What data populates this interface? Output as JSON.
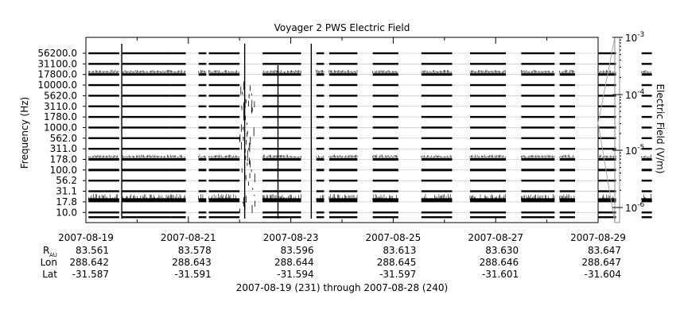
{
  "chart_data": {
    "type": "spectrogram",
    "title": "Voyager 2 PWS Electric Field",
    "ylabel": "Frequency (Hz)",
    "colorbar_label": "Electric Field (V/m)",
    "colorbar_ticks": [
      {
        "base": "10",
        "exp": "-3",
        "value": 0.001
      },
      {
        "base": "10",
        "exp": "-4",
        "value": 0.0001
      },
      {
        "base": "10",
        "exp": "-5",
        "value": 1e-05
      },
      {
        "base": "10",
        "exp": "-6",
        "value": 1e-06
      }
    ],
    "channels": [
      "56200.0",
      "31100.0",
      "17800.0",
      "10000.0",
      "5620.0",
      "3110.0",
      "1780.0",
      "1000.0",
      "562.0",
      "311.0",
      "178.0",
      "100.0",
      "56.2",
      "31.1",
      "17.8",
      "10.0"
    ],
    "x_tick_labels": [
      "2007-08-19",
      "2007-08-21",
      "2007-08-23",
      "2007-08-25",
      "2007-08-27",
      "2007-08-29"
    ],
    "xlim": [
      "2007-08-19",
      "2007-08-29"
    ],
    "ephemeris": {
      "labels": {
        "r_main": "R",
        "r_sub": "AU",
        "lon": "Lon",
        "lat": "Lat"
      },
      "values": [
        {
          "r": "83.561",
          "lon": "288.642",
          "lat": "-31.587"
        },
        {
          "r": "83.578",
          "lon": "288.643",
          "lat": "-31.591"
        },
        {
          "r": "83.596",
          "lon": "288.644",
          "lat": "-31.594"
        },
        {
          "r": "83.613",
          "lon": "288.645",
          "lat": "-31.597"
        },
        {
          "r": "83.630",
          "lon": "288.646",
          "lat": "-31.601"
        },
        {
          "r": "83.647",
          "lon": "288.647",
          "lat": "-31.604"
        }
      ]
    },
    "data_segments_days": [
      [
        0.05,
        0.65
      ],
      [
        0.7,
        1.65
      ],
      [
        1.65,
        1.95
      ],
      [
        2.2,
        2.35
      ],
      [
        2.4,
        3.0
      ],
      [
        3.45,
        4.2
      ],
      [
        4.5,
        4.65
      ],
      [
        4.75,
        5.3
      ],
      [
        5.6,
        6.1
      ],
      [
        6.55,
        7.15
      ],
      [
        7.5,
        8.2
      ],
      [
        8.5,
        9.15
      ],
      [
        9.25,
        9.55
      ],
      [
        10.0,
        10.35
      ],
      [
        10.85,
        11.05
      ]
    ],
    "bursts_days": [
      0.7,
      3.1,
      3.75,
      4.4
    ],
    "grid": false
  },
  "footer": {
    "range": "2007-08-19 (231) through 2007-08-28 (240)"
  }
}
